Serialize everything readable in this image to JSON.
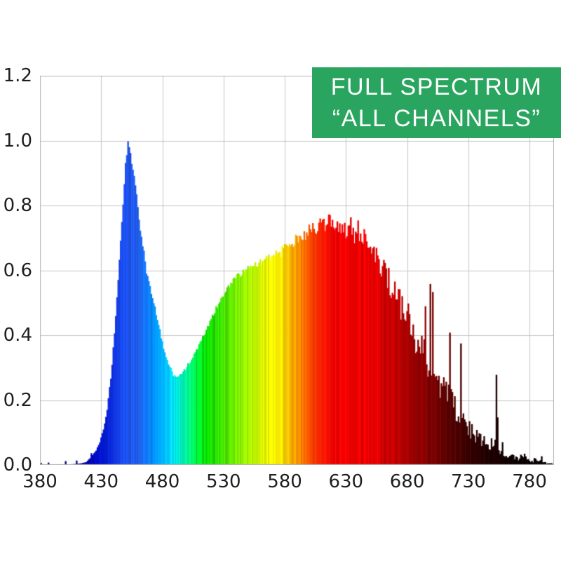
{
  "banner": {
    "line1": "FULL SPECTRUM",
    "line2": "“ALL CHANNELS”",
    "background_color": "#2aa55f",
    "text_color": "#ffffff"
  },
  "chart_data": {
    "type": "area",
    "description": "Spectral power distribution, full spectrum LED, all channels",
    "xlim": [
      380,
      800
    ],
    "ylim": [
      0,
      1.2
    ],
    "grid": true,
    "grid_color": "#c6c6c6",
    "border_color": "#b4b4b4",
    "tick_color": "#1f1f1f",
    "x_ticks": [
      {
        "v": 380,
        "label": "380"
      },
      {
        "v": 430,
        "label": "430"
      },
      {
        "v": 480,
        "label": "480"
      },
      {
        "v": 530,
        "label": "530"
      },
      {
        "v": 580,
        "label": "580"
      },
      {
        "v": 630,
        "label": "630"
      },
      {
        "v": 680,
        "label": "680"
      },
      {
        "v": 730,
        "label": "730"
      },
      {
        "v": 780,
        "label": "780"
      }
    ],
    "y_ticks": [
      {
        "v": 0.0,
        "label": "0.0"
      },
      {
        "v": 0.2,
        "label": "0.2"
      },
      {
        "v": 0.4,
        "label": "0.4"
      },
      {
        "v": 0.6,
        "label": "0.6"
      },
      {
        "v": 0.8,
        "label": "0.8"
      },
      {
        "v": 1.0,
        "label": "1.0"
      },
      {
        "v": 1.2,
        "label": "1.2"
      }
    ],
    "points": [
      [
        380,
        0.001
      ],
      [
        386,
        0.001
      ],
      [
        392,
        0.001
      ],
      [
        398,
        0.001
      ],
      [
        404,
        0.002
      ],
      [
        410,
        0.003
      ],
      [
        414,
        0.005
      ],
      [
        418,
        0.009
      ],
      [
        422,
        0.025
      ],
      [
        426,
        0.045
      ],
      [
        429,
        0.07
      ],
      [
        432,
        0.11
      ],
      [
        435,
        0.17
      ],
      [
        438,
        0.27
      ],
      [
        441,
        0.4
      ],
      [
        444,
        0.57
      ],
      [
        447,
        0.75
      ],
      [
        449,
        0.87
      ],
      [
        451,
        0.96
      ],
      [
        452,
        1.0
      ],
      [
        453,
        0.985
      ],
      [
        455,
        0.945
      ],
      [
        457,
        0.885
      ],
      [
        459,
        0.82
      ],
      [
        461,
        0.755
      ],
      [
        464,
        0.675
      ],
      [
        467,
        0.6
      ],
      [
        470,
        0.545
      ],
      [
        473,
        0.5
      ],
      [
        477,
        0.43
      ],
      [
        481,
        0.36
      ],
      [
        485,
        0.315
      ],
      [
        489,
        0.277
      ],
      [
        493,
        0.27
      ],
      [
        497,
        0.285
      ],
      [
        502,
        0.315
      ],
      [
        508,
        0.35
      ],
      [
        514,
        0.4
      ],
      [
        520,
        0.45
      ],
      [
        526,
        0.5
      ],
      [
        531,
        0.53
      ],
      [
        537,
        0.565
      ],
      [
        543,
        0.585
      ],
      [
        550,
        0.605
      ],
      [
        557,
        0.62
      ],
      [
        565,
        0.638
      ],
      [
        572,
        0.65
      ],
      [
        578,
        0.66
      ],
      [
        584,
        0.675
      ],
      [
        590,
        0.695
      ],
      [
        597,
        0.715
      ],
      [
        603,
        0.725
      ],
      [
        609,
        0.735
      ],
      [
        615,
        0.745
      ],
      [
        621,
        0.74
      ],
      [
        628,
        0.735
      ],
      [
        634,
        0.727
      ],
      [
        640,
        0.715
      ],
      [
        645,
        0.7
      ],
      [
        651,
        0.67
      ],
      [
        657,
        0.635
      ],
      [
        663,
        0.59
      ],
      [
        669,
        0.545
      ],
      [
        675,
        0.5
      ],
      [
        681,
        0.455
      ],
      [
        687,
        0.4
      ],
      [
        693,
        0.355
      ],
      [
        699,
        0.305
      ],
      [
        705,
        0.265
      ],
      [
        711,
        0.225
      ],
      [
        717,
        0.19
      ],
      [
        723,
        0.155
      ],
      [
        729,
        0.12
      ],
      [
        735,
        0.095
      ],
      [
        741,
        0.075
      ],
      [
        747,
        0.058
      ],
      [
        751,
        0.05
      ],
      [
        753,
        0.11
      ],
      [
        755,
        0.05
      ],
      [
        759,
        0.038
      ],
      [
        763,
        0.03
      ],
      [
        767,
        0.026
      ],
      [
        771,
        0.022
      ],
      [
        775,
        0.025
      ],
      [
        779,
        0.016
      ],
      [
        783,
        0.012
      ],
      [
        787,
        0.018
      ],
      [
        791,
        0.008
      ],
      [
        795,
        0.005
      ],
      [
        800,
        0.004
      ]
    ],
    "spectrum_colors": [
      [
        380,
        "#000060"
      ],
      [
        400,
        "#000080"
      ],
      [
        415,
        "#0000A0"
      ],
      [
        425,
        "#0008BE"
      ],
      [
        432,
        "#0016CE"
      ],
      [
        438,
        "#0A28DC"
      ],
      [
        444,
        "#1440E8"
      ],
      [
        450,
        "#1C50EE"
      ],
      [
        456,
        "#2058F0"
      ],
      [
        462,
        "#1E64F2"
      ],
      [
        468,
        "#0E78F8"
      ],
      [
        474,
        "#0090FF"
      ],
      [
        480,
        "#00AAFF"
      ],
      [
        486,
        "#00C8FA"
      ],
      [
        491,
        "#00E8E8"
      ],
      [
        496,
        "#00F8C8"
      ],
      [
        500,
        "#00FC9C"
      ],
      [
        505,
        "#00F560"
      ],
      [
        510,
        "#00EE30"
      ],
      [
        516,
        "#0AE400"
      ],
      [
        522,
        "#1EDE00"
      ],
      [
        528,
        "#3CE200"
      ],
      [
        535,
        "#5CE800"
      ],
      [
        542,
        "#7EEE00"
      ],
      [
        550,
        "#A4F400"
      ],
      [
        558,
        "#C8F800"
      ],
      [
        565,
        "#E8FC00"
      ],
      [
        571,
        "#FCFA00"
      ],
      [
        577,
        "#FFE800"
      ],
      [
        583,
        "#FFC400"
      ],
      [
        589,
        "#FF9C00"
      ],
      [
        595,
        "#FF7400"
      ],
      [
        601,
        "#FF4C00"
      ],
      [
        607,
        "#FF2C00"
      ],
      [
        613,
        "#FC1400"
      ],
      [
        619,
        "#F80400"
      ],
      [
        625,
        "#F40000"
      ],
      [
        640,
        "#EE0000"
      ],
      [
        655,
        "#DC0000"
      ],
      [
        668,
        "#C40000"
      ],
      [
        680,
        "#A80000"
      ],
      [
        692,
        "#8C0000"
      ],
      [
        704,
        "#700000"
      ],
      [
        716,
        "#540000"
      ],
      [
        728,
        "#3C0000"
      ],
      [
        740,
        "#280000"
      ],
      [
        752,
        "#1A0000"
      ],
      [
        764,
        "#100000"
      ],
      [
        776,
        "#0A0000"
      ],
      [
        800,
        "#040000"
      ]
    ],
    "noise": {
      "seed": 13,
      "base_rel": 0.015,
      "warm_extra": 0.1,
      "far_red_extra": 0.25
    }
  }
}
